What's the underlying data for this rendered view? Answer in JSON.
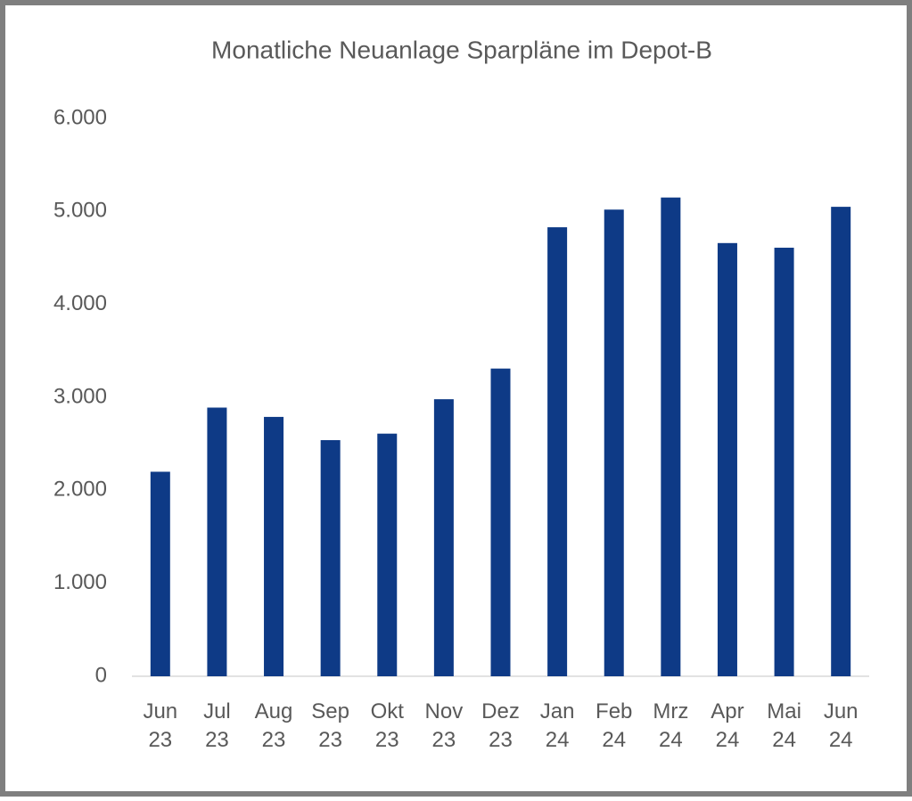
{
  "chart_data": {
    "type": "bar",
    "title": "Monatliche Neuanlage Sparpläne im Depot-B",
    "categories": [
      "Jun 23",
      "Jul 23",
      "Aug 23",
      "Sep 23",
      "Okt 23",
      "Nov 23",
      "Dez 23",
      "Jan 24",
      "Feb 24",
      "Mrz 24",
      "Apr 24",
      "Mai 24",
      "Jun 24"
    ],
    "values": [
      2200,
      2890,
      2790,
      2540,
      2610,
      2980,
      3310,
      4830,
      5020,
      5150,
      4660,
      4610,
      5050
    ],
    "color": "#0e3a86",
    "ylim": [
      0,
      6000
    ],
    "yticks": [
      0,
      {
        "value": 1000,
        "label": "1.000"
      },
      {
        "value": 2000,
        "label": "2.000"
      },
      {
        "value": 3000,
        "label": "3.000"
      },
      {
        "value": 4000,
        "label": "4.000"
      },
      {
        "value": 5000,
        "label": "5.000"
      },
      {
        "value": 6000,
        "label": "6.000"
      }
    ],
    "grid": false
  }
}
